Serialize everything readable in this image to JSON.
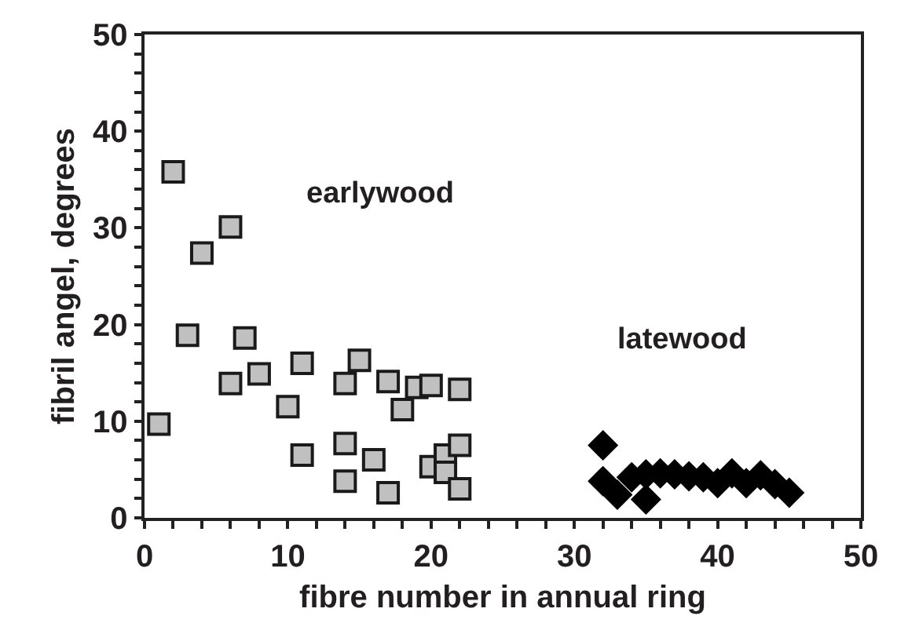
{
  "chart_data": {
    "type": "scatter",
    "xlabel": "fibre number in annual ring",
    "ylabel": "fibril angel, degrees",
    "xlim": [
      0,
      50
    ],
    "ylim": [
      0,
      50
    ],
    "xticks": [
      0,
      {
        "value": 2,
        "label": null
      },
      {
        "value": 4,
        "label": null
      },
      {
        "value": 6,
        "label": null
      },
      {
        "value": 8,
        "label": null
      },
      10,
      {
        "value": 12,
        "label": null
      },
      {
        "value": 14,
        "label": null
      },
      {
        "value": 16,
        "label": null
      },
      {
        "value": 18,
        "label": null
      },
      20,
      {
        "value": 22,
        "label": null
      },
      {
        "value": 24,
        "label": null
      },
      {
        "value": 26,
        "label": null
      },
      {
        "value": 28,
        "label": null
      },
      30,
      {
        "value": 32,
        "label": null
      },
      {
        "value": 34,
        "label": null
      },
      {
        "value": 36,
        "label": null
      },
      {
        "value": 38,
        "label": null
      },
      40,
      {
        "value": 42,
        "label": null
      },
      {
        "value": 44,
        "label": null
      },
      {
        "value": 46,
        "label": null
      },
      {
        "value": 48,
        "label": null
      },
      50
    ],
    "yticks": [
      0,
      {
        "value": 2,
        "label": null
      },
      {
        "value": 4,
        "label": null
      },
      {
        "value": 6,
        "label": null
      },
      {
        "value": 8,
        "label": null
      },
      10,
      {
        "value": 12,
        "label": null
      },
      {
        "value": 14,
        "label": null
      },
      {
        "value": 16,
        "label": null
      },
      {
        "value": 18,
        "label": null
      },
      20,
      {
        "value": 22,
        "label": null
      },
      {
        "value": 24,
        "label": null
      },
      {
        "value": 26,
        "label": null
      },
      {
        "value": 28,
        "label": null
      },
      30,
      {
        "value": 32,
        "label": null
      },
      {
        "value": 34,
        "label": null
      },
      {
        "value": 36,
        "label": null
      },
      {
        "value": 38,
        "label": null
      },
      40,
      {
        "value": 42,
        "label": null
      },
      {
        "value": 44,
        "label": null
      },
      {
        "value": 46,
        "label": null
      },
      {
        "value": 48,
        "label": null
      },
      50
    ],
    "series": [
      {
        "color": "#c0c0c0",
        "marker": "square",
        "x": [
          1,
          2,
          3,
          4,
          6,
          6,
          7,
          8,
          10,
          11,
          11,
          14,
          14,
          14,
          15,
          16,
          17,
          17,
          18,
          19,
          20,
          20,
          21,
          21,
          22,
          22,
          22
        ],
        "values": [
          9.7,
          35.8,
          18.9,
          27.4,
          30.1,
          13.9,
          18.6,
          14.9,
          11.5,
          16.0,
          6.5,
          13.9,
          7.7,
          3.8,
          16.3,
          6.0,
          14.1,
          2.6,
          11.2,
          13.5,
          13.7,
          5.3,
          6.5,
          4.7,
          13.3,
          7.5,
          3.0
        ]
      },
      {
        "color": "#000000",
        "marker": "diamond",
        "x": [
          32,
          32,
          33,
          34,
          35,
          35,
          36,
          37,
          38,
          39,
          40,
          41,
          42,
          43,
          44,
          45
        ],
        "values": [
          7.5,
          3.8,
          2.4,
          4.2,
          1.9,
          4.5,
          4.6,
          4.5,
          4.3,
          4.2,
          3.6,
          4.6,
          3.6,
          4.4,
          3.5,
          2.6
        ]
      }
    ],
    "annotations": [
      "earlywood",
      "latewood"
    ]
  }
}
